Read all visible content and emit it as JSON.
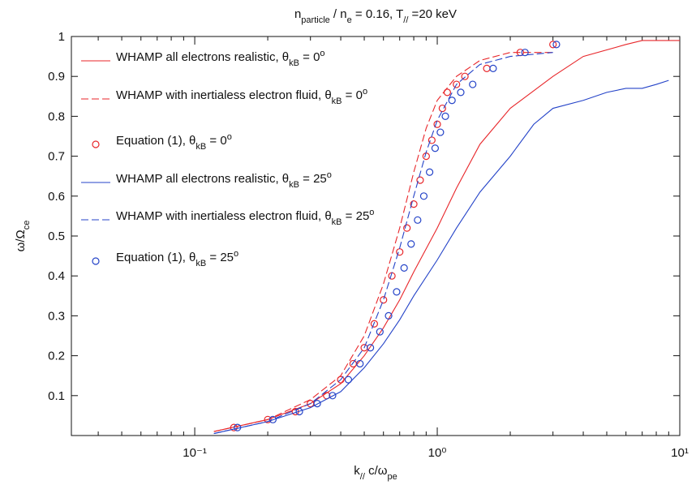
{
  "chart_data": {
    "type": "line",
    "title": [
      "n",
      {
        "text": "particle",
        "shift": "sub"
      },
      " / n",
      {
        "text": "e",
        "shift": "sub"
      },
      " = 0.16, T",
      {
        "text": "//",
        "shift": "sub"
      },
      " =20 keV"
    ],
    "xlabel": [
      "k",
      {
        "text": "//",
        "shift": "sub"
      },
      " c/ω",
      {
        "text": "pe",
        "shift": "sub"
      }
    ],
    "ylabel": [
      "ω/Ω",
      {
        "text": "ce",
        "shift": "sub"
      }
    ],
    "xscale": "log",
    "xlim": [
      0.031,
      10
    ],
    "ylim": [
      0,
      1
    ],
    "xticks": [
      {
        "value": 0.1,
        "label": "10⁻¹"
      },
      {
        "value": 1,
        "label": "10⁰"
      },
      {
        "value": 10,
        "label": "10¹"
      }
    ],
    "xminorticks": [
      0.04,
      0.05,
      0.06,
      0.07,
      0.08,
      0.09,
      0.2,
      0.3,
      0.4,
      0.5,
      0.6,
      0.7,
      0.8,
      0.9,
      2,
      3,
      4,
      5,
      6,
      7,
      8,
      9
    ],
    "yticks": [
      0.1,
      0.2,
      0.3,
      0.4,
      0.5,
      0.6,
      0.7,
      0.8,
      0.9,
      1
    ],
    "legend": "upper left",
    "series": [
      {
        "name": [
          "WHAMP all electrons realistic, θ",
          {
            "text": "kB",
            "shift": "sub"
          },
          " = 0",
          {
            "text": "o",
            "shift": "sup"
          }
        ],
        "color": "#e8262a",
        "style": "solid",
        "x": [
          0.12,
          0.2,
          0.3,
          0.4,
          0.5,
          0.6,
          0.7,
          0.8,
          1.0,
          1.2,
          1.5,
          2,
          3,
          4,
          6,
          7,
          10
        ],
        "values": [
          0.01,
          0.04,
          0.08,
          0.13,
          0.2,
          0.27,
          0.34,
          0.41,
          0.52,
          0.62,
          0.73,
          0.82,
          0.9,
          0.95,
          0.98,
          0.99,
          0.99
        ]
      },
      {
        "name": [
          "WHAMP with inertialess electron fluid, θ",
          {
            "text": "kB",
            "shift": "sub"
          },
          " = 0",
          {
            "text": "o",
            "shift": "sup"
          }
        ],
        "color": "#e8262a",
        "style": "dashed",
        "x": [
          0.12,
          0.2,
          0.3,
          0.4,
          0.5,
          0.6,
          0.7,
          0.8,
          0.9,
          1.0,
          1.2,
          1.5,
          2,
          3
        ],
        "values": [
          0.01,
          0.04,
          0.09,
          0.15,
          0.25,
          0.38,
          0.52,
          0.66,
          0.77,
          0.84,
          0.9,
          0.94,
          0.96,
          0.96
        ]
      },
      {
        "name": [
          "Equation (1), θ",
          {
            "text": "kB",
            "shift": "sub"
          },
          " = 0",
          {
            "text": "o",
            "shift": "sup"
          }
        ],
        "color": "#e8262a",
        "style": "circle",
        "x": [
          0.145,
          0.2,
          0.26,
          0.3,
          0.35,
          0.4,
          0.45,
          0.5,
          0.55,
          0.6,
          0.65,
          0.7,
          0.75,
          0.8,
          0.85,
          0.9,
          0.95,
          1.0,
          1.05,
          1.1,
          1.2,
          1.3,
          1.6,
          2.2,
          3.0
        ],
        "values": [
          0.02,
          0.04,
          0.06,
          0.08,
          0.1,
          0.14,
          0.18,
          0.22,
          0.28,
          0.34,
          0.4,
          0.46,
          0.52,
          0.58,
          0.64,
          0.7,
          0.74,
          0.78,
          0.82,
          0.86,
          0.88,
          0.9,
          0.92,
          0.96,
          0.98
        ]
      },
      {
        "name": [
          "WHAMP all electrons realistic, θ",
          {
            "text": "kB",
            "shift": "sub"
          },
          " = 25",
          {
            "text": "o",
            "shift": "sup"
          }
        ],
        "color": "#2443c8",
        "style": "solid",
        "x": [
          0.12,
          0.2,
          0.3,
          0.4,
          0.5,
          0.6,
          0.7,
          0.8,
          1.0,
          1.2,
          1.5,
          2,
          2.5,
          3,
          4,
          5,
          6,
          7,
          8,
          9
        ],
        "values": [
          0.005,
          0.035,
          0.07,
          0.11,
          0.17,
          0.23,
          0.29,
          0.35,
          0.44,
          0.52,
          0.61,
          0.7,
          0.78,
          0.82,
          0.84,
          0.86,
          0.87,
          0.87,
          0.88,
          0.89
        ]
      },
      {
        "name": [
          "WHAMP with inertialess electron fluid, θ",
          {
            "text": "kB",
            "shift": "sub"
          },
          " = 25",
          {
            "text": "o",
            "shift": "sup"
          }
        ],
        "color": "#2443c8",
        "style": "dashed",
        "x": [
          0.12,
          0.2,
          0.3,
          0.4,
          0.5,
          0.6,
          0.7,
          0.8,
          0.9,
          1.0,
          1.2,
          1.5,
          2,
          3
        ],
        "values": [
          0.005,
          0.035,
          0.08,
          0.14,
          0.22,
          0.34,
          0.47,
          0.6,
          0.71,
          0.79,
          0.88,
          0.93,
          0.95,
          0.96
        ]
      },
      {
        "name": [
          "Equation (1), θ",
          {
            "text": "kB",
            "shift": "sub"
          },
          " = 25",
          {
            "text": "o",
            "shift": "sup"
          }
        ],
        "color": "#2443c8",
        "style": "circle",
        "x": [
          0.15,
          0.21,
          0.27,
          0.32,
          0.37,
          0.43,
          0.48,
          0.53,
          0.58,
          0.63,
          0.68,
          0.73,
          0.78,
          0.83,
          0.88,
          0.93,
          0.98,
          1.03,
          1.08,
          1.15,
          1.25,
          1.4,
          1.7,
          2.3,
          3.1
        ],
        "values": [
          0.02,
          0.04,
          0.06,
          0.08,
          0.1,
          0.14,
          0.18,
          0.22,
          0.26,
          0.3,
          0.36,
          0.42,
          0.48,
          0.54,
          0.6,
          0.66,
          0.72,
          0.76,
          0.8,
          0.84,
          0.86,
          0.88,
          0.92,
          0.96,
          0.98
        ]
      }
    ]
  }
}
